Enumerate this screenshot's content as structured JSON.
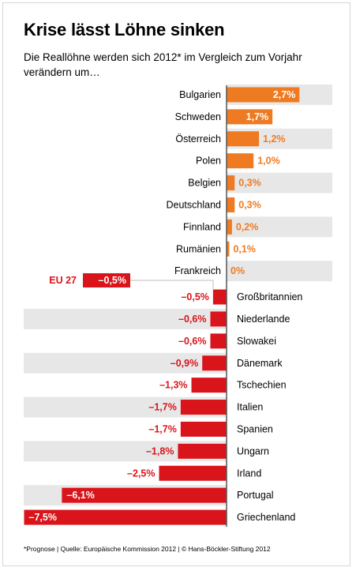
{
  "title": "Krise lässt Löhne sinken",
  "subtitle": "Die Reallöhne werden sich 2012* im Vergleich zum Vorjahr verändern um…",
  "footnote": "*Prognose | Quelle: Europäische Kommission 2012 | © Hans-Böckler-Stiftung 2012",
  "colors": {
    "positive": "#ee7a22",
    "negative": "#d9141a",
    "stripe": "#e7e7e7",
    "axis": "#555555"
  },
  "chart_data": {
    "type": "bar",
    "orientation": "horizontal",
    "categories": [
      "Bulgarien",
      "Schweden",
      "Österreich",
      "Polen",
      "Belgien",
      "Deutschland",
      "Finnland",
      "Rumänien",
      "Frankreich",
      "Großbritannien",
      "Niederlande",
      "Slowakei",
      "Dänemark",
      "Tschechien",
      "Italien",
      "Spanien",
      "Ungarn",
      "Irland",
      "Portugal",
      "Griechenland"
    ],
    "values": [
      2.7,
      1.7,
      1.2,
      1.0,
      0.3,
      0.3,
      0.2,
      0.1,
      0,
      -0.5,
      -0.6,
      -0.6,
      -0.9,
      -1.3,
      -1.7,
      -1.7,
      -1.8,
      -2.5,
      -6.1,
      -7.5
    ],
    "value_labels": [
      "2,7%",
      "1,7%",
      "1,2%",
      "1,0%",
      "0,3%",
      "0,3%",
      "0,2%",
      "0,1%",
      "0%",
      "–0,5%",
      "–0,6%",
      "–0,6%",
      "–0,9%",
      "–1,3%",
      "–1,7%",
      "–1,7%",
      "–1,8%",
      "–2,5%",
      "–6,1%",
      "–7,5%"
    ],
    "annotation": {
      "label": "EU 27",
      "value": -0.5,
      "value_label": "–0,5%"
    },
    "unit": "%",
    "grid": false
  }
}
